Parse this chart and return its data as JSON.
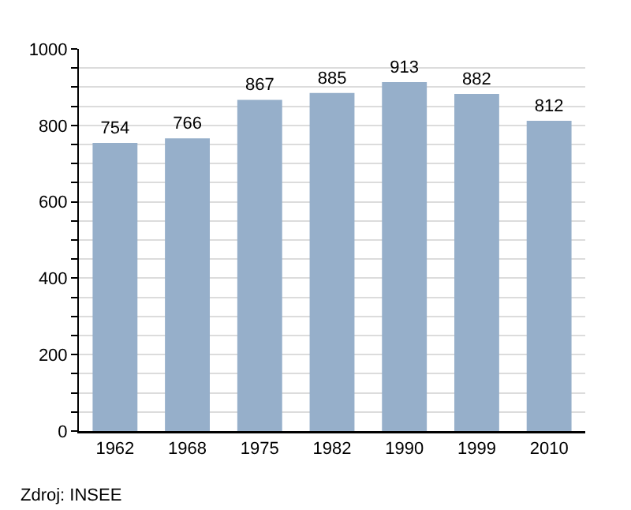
{
  "chart_data": {
    "type": "bar",
    "categories": [
      "1962",
      "1968",
      "1975",
      "1982",
      "1990",
      "1999",
      "2010"
    ],
    "values": [
      754,
      766,
      867,
      885,
      913,
      882,
      812
    ],
    "color": "#96afca",
    "data_labels": true,
    "ylim": [
      0,
      1000
    ],
    "yticks": [
      0,
      {
        "value": 50,
        "label": null
      },
      {
        "value": 100,
        "label": null
      },
      {
        "value": 150,
        "label": null
      },
      200,
      {
        "value": 250,
        "label": null
      },
      {
        "value": 300,
        "label": null
      },
      {
        "value": 350,
        "label": null
      },
      400,
      {
        "value": 450,
        "label": null
      },
      {
        "value": 500,
        "label": null
      },
      {
        "value": 550,
        "label": null
      },
      600,
      {
        "value": 650,
        "label": null
      },
      {
        "value": 700,
        "label": null
      },
      {
        "value": 750,
        "label": null
      },
      800,
      {
        "value": 850,
        "label": null
      },
      {
        "value": 900,
        "label": null
      },
      {
        "value": 950,
        "label": null
      },
      1000
    ],
    "grid": "y",
    "annotations": [
      "Zdroj: INSEE"
    ]
  }
}
